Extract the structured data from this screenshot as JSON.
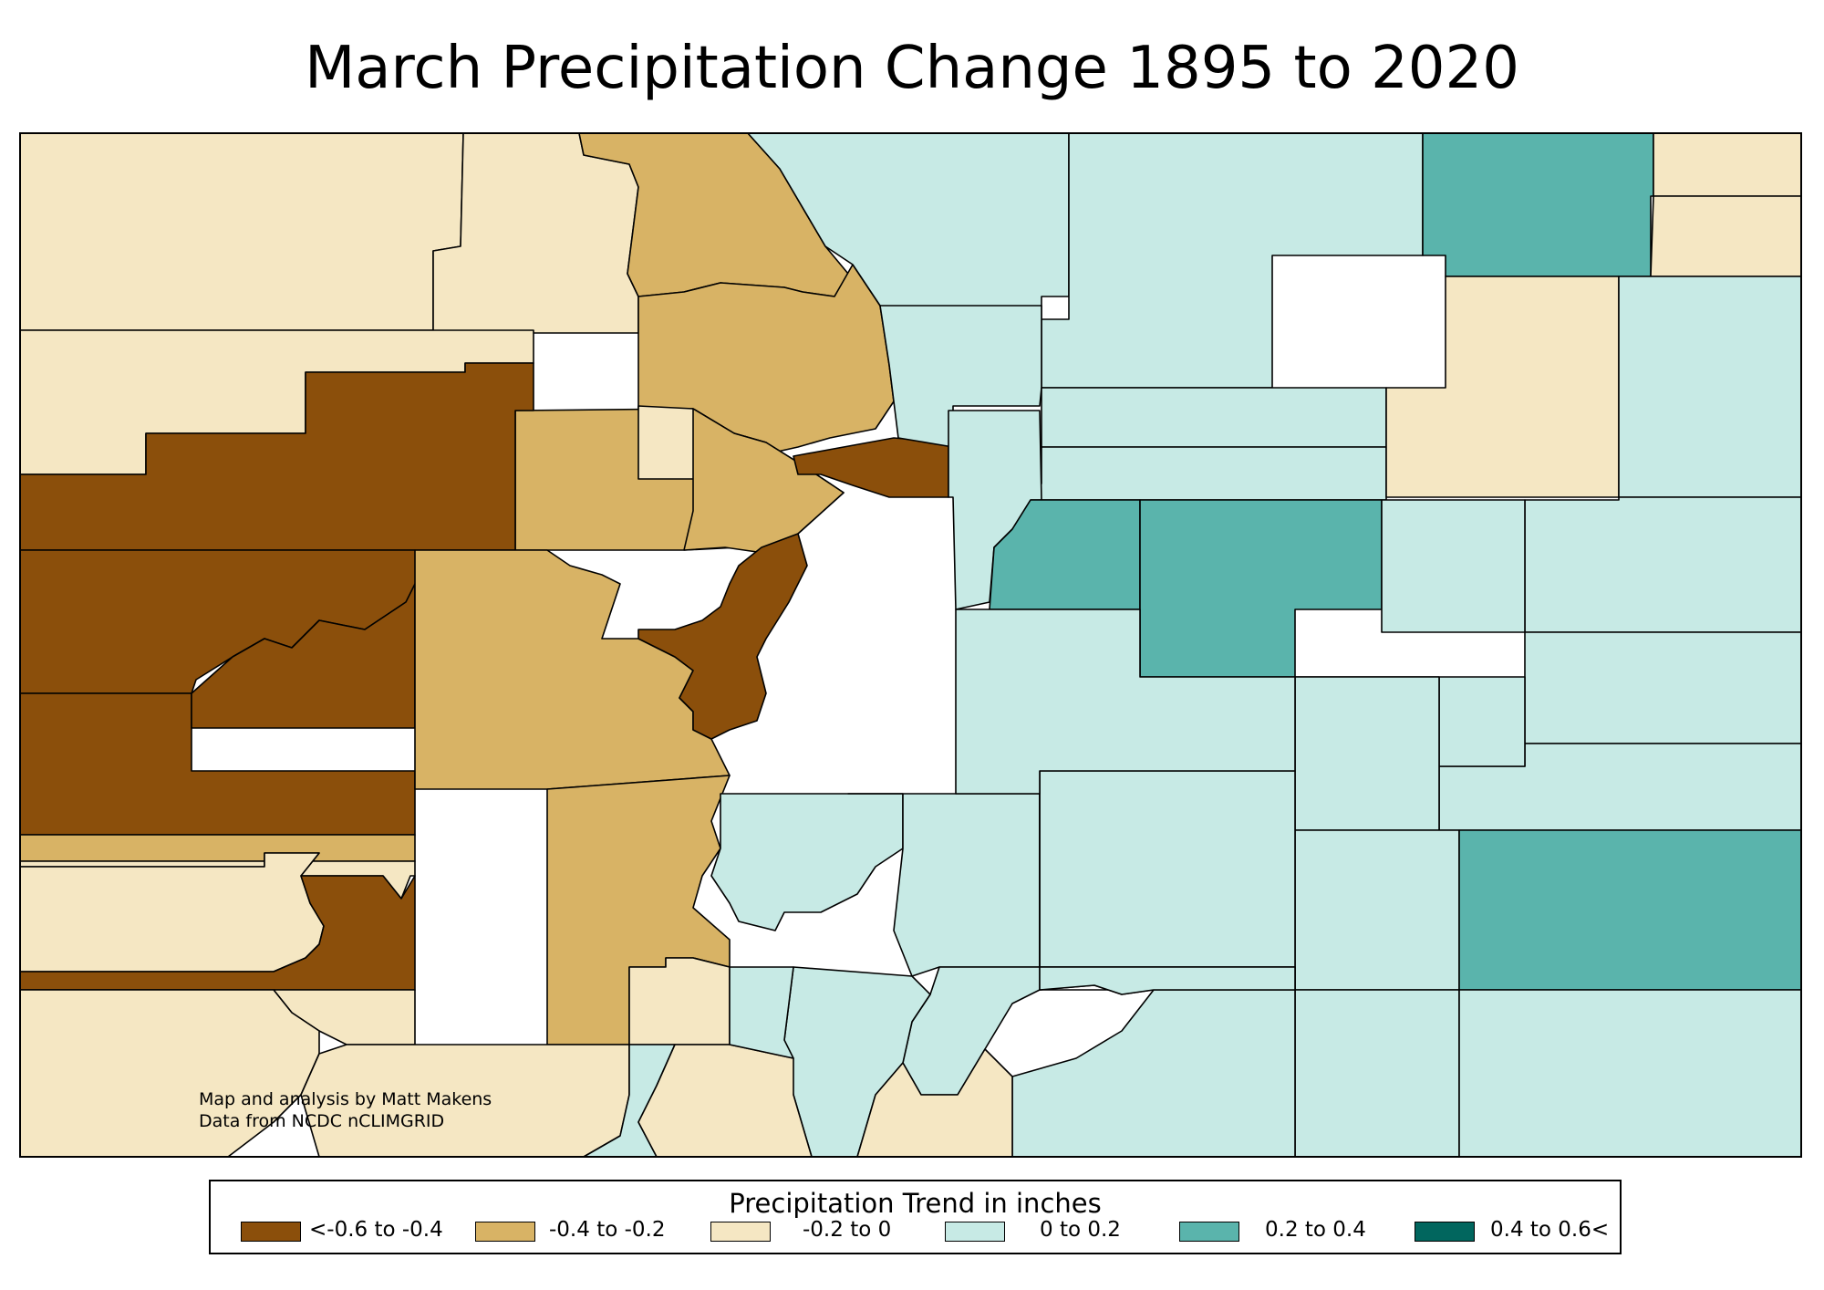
{
  "title": "March Precipitation Change 1895 to 2020",
  "credits": {
    "line1": "Map and analysis by Matt Makens",
    "line2": "Data from NCDC nCLIMGRID"
  },
  "legend": {
    "title": "Precipitation Trend in inches",
    "classes": [
      {
        "label": "<-0.6 to -0.4",
        "color": "#8b4f0b"
      },
      {
        "label": "-0.4 to -0.2",
        "color": "#d8b365"
      },
      {
        "label": "-0.2 to 0",
        "color": "#f5e7c3"
      },
      {
        "label": "0 to 0.2",
        "color": "#c7eae5"
      },
      {
        "label": "0.2 to 0.4",
        "color": "#5ab4ac"
      },
      {
        "label": "0.4 to 0.6<",
        "color": "#01665e"
      }
    ]
  },
  "regions": [
    {
      "class": 2
    },
    {
      "class": 2
    },
    {
      "class": 1
    },
    {
      "class": 2
    },
    {
      "class": 1
    },
    {
      "class": 1
    },
    {
      "class": 0
    },
    {
      "class": 2
    },
    {
      "class": 1
    },
    {
      "class": 0
    },
    {
      "class": 0
    },
    {
      "class": 0
    },
    {
      "class": 0
    },
    {
      "class": 1
    },
    {
      "class": 0
    },
    {
      "class": 1
    },
    {
      "class": 2
    },
    {
      "class": 2
    },
    {
      "class": 0
    },
    {
      "class": 1
    },
    {
      "class": 2
    },
    {
      "class": 3
    },
    {
      "class": 3
    },
    {
      "class": 2
    },
    {
      "class": 2
    },
    {
      "class": 3
    },
    {
      "class": 3
    },
    {
      "class": 3
    },
    {
      "class": 3
    },
    {
      "class": 3
    },
    {
      "class": 3
    },
    {
      "class": 4
    },
    {
      "class": 4
    },
    {
      "class": 4
    },
    {
      "class": 2
    },
    {
      "class": 2
    },
    {
      "class": 2
    },
    {
      "class": 3
    },
    {
      "class": 3
    },
    {
      "class": 3
    },
    {
      "class": 3
    },
    {
      "class": 3
    },
    {
      "class": 3
    },
    {
      "class": 3
    },
    {
      "class": 3
    },
    {
      "class": 4
    },
    {
      "class": 3
    },
    {
      "class": 3
    },
    {
      "class": 3
    },
    {
      "class": 3
    },
    {
      "class": 3
    },
    {
      "class": 3
    },
    {
      "class": 3
    },
    {
      "class": 2
    },
    {
      "class": 2
    },
    {
      "class": 3
    },
    {
      "class": 2
    },
    {
      "class": 3
    },
    {
      "class": 3
    },
    {
      "class": 3
    },
    {
      "class": 3
    }
  ]
}
